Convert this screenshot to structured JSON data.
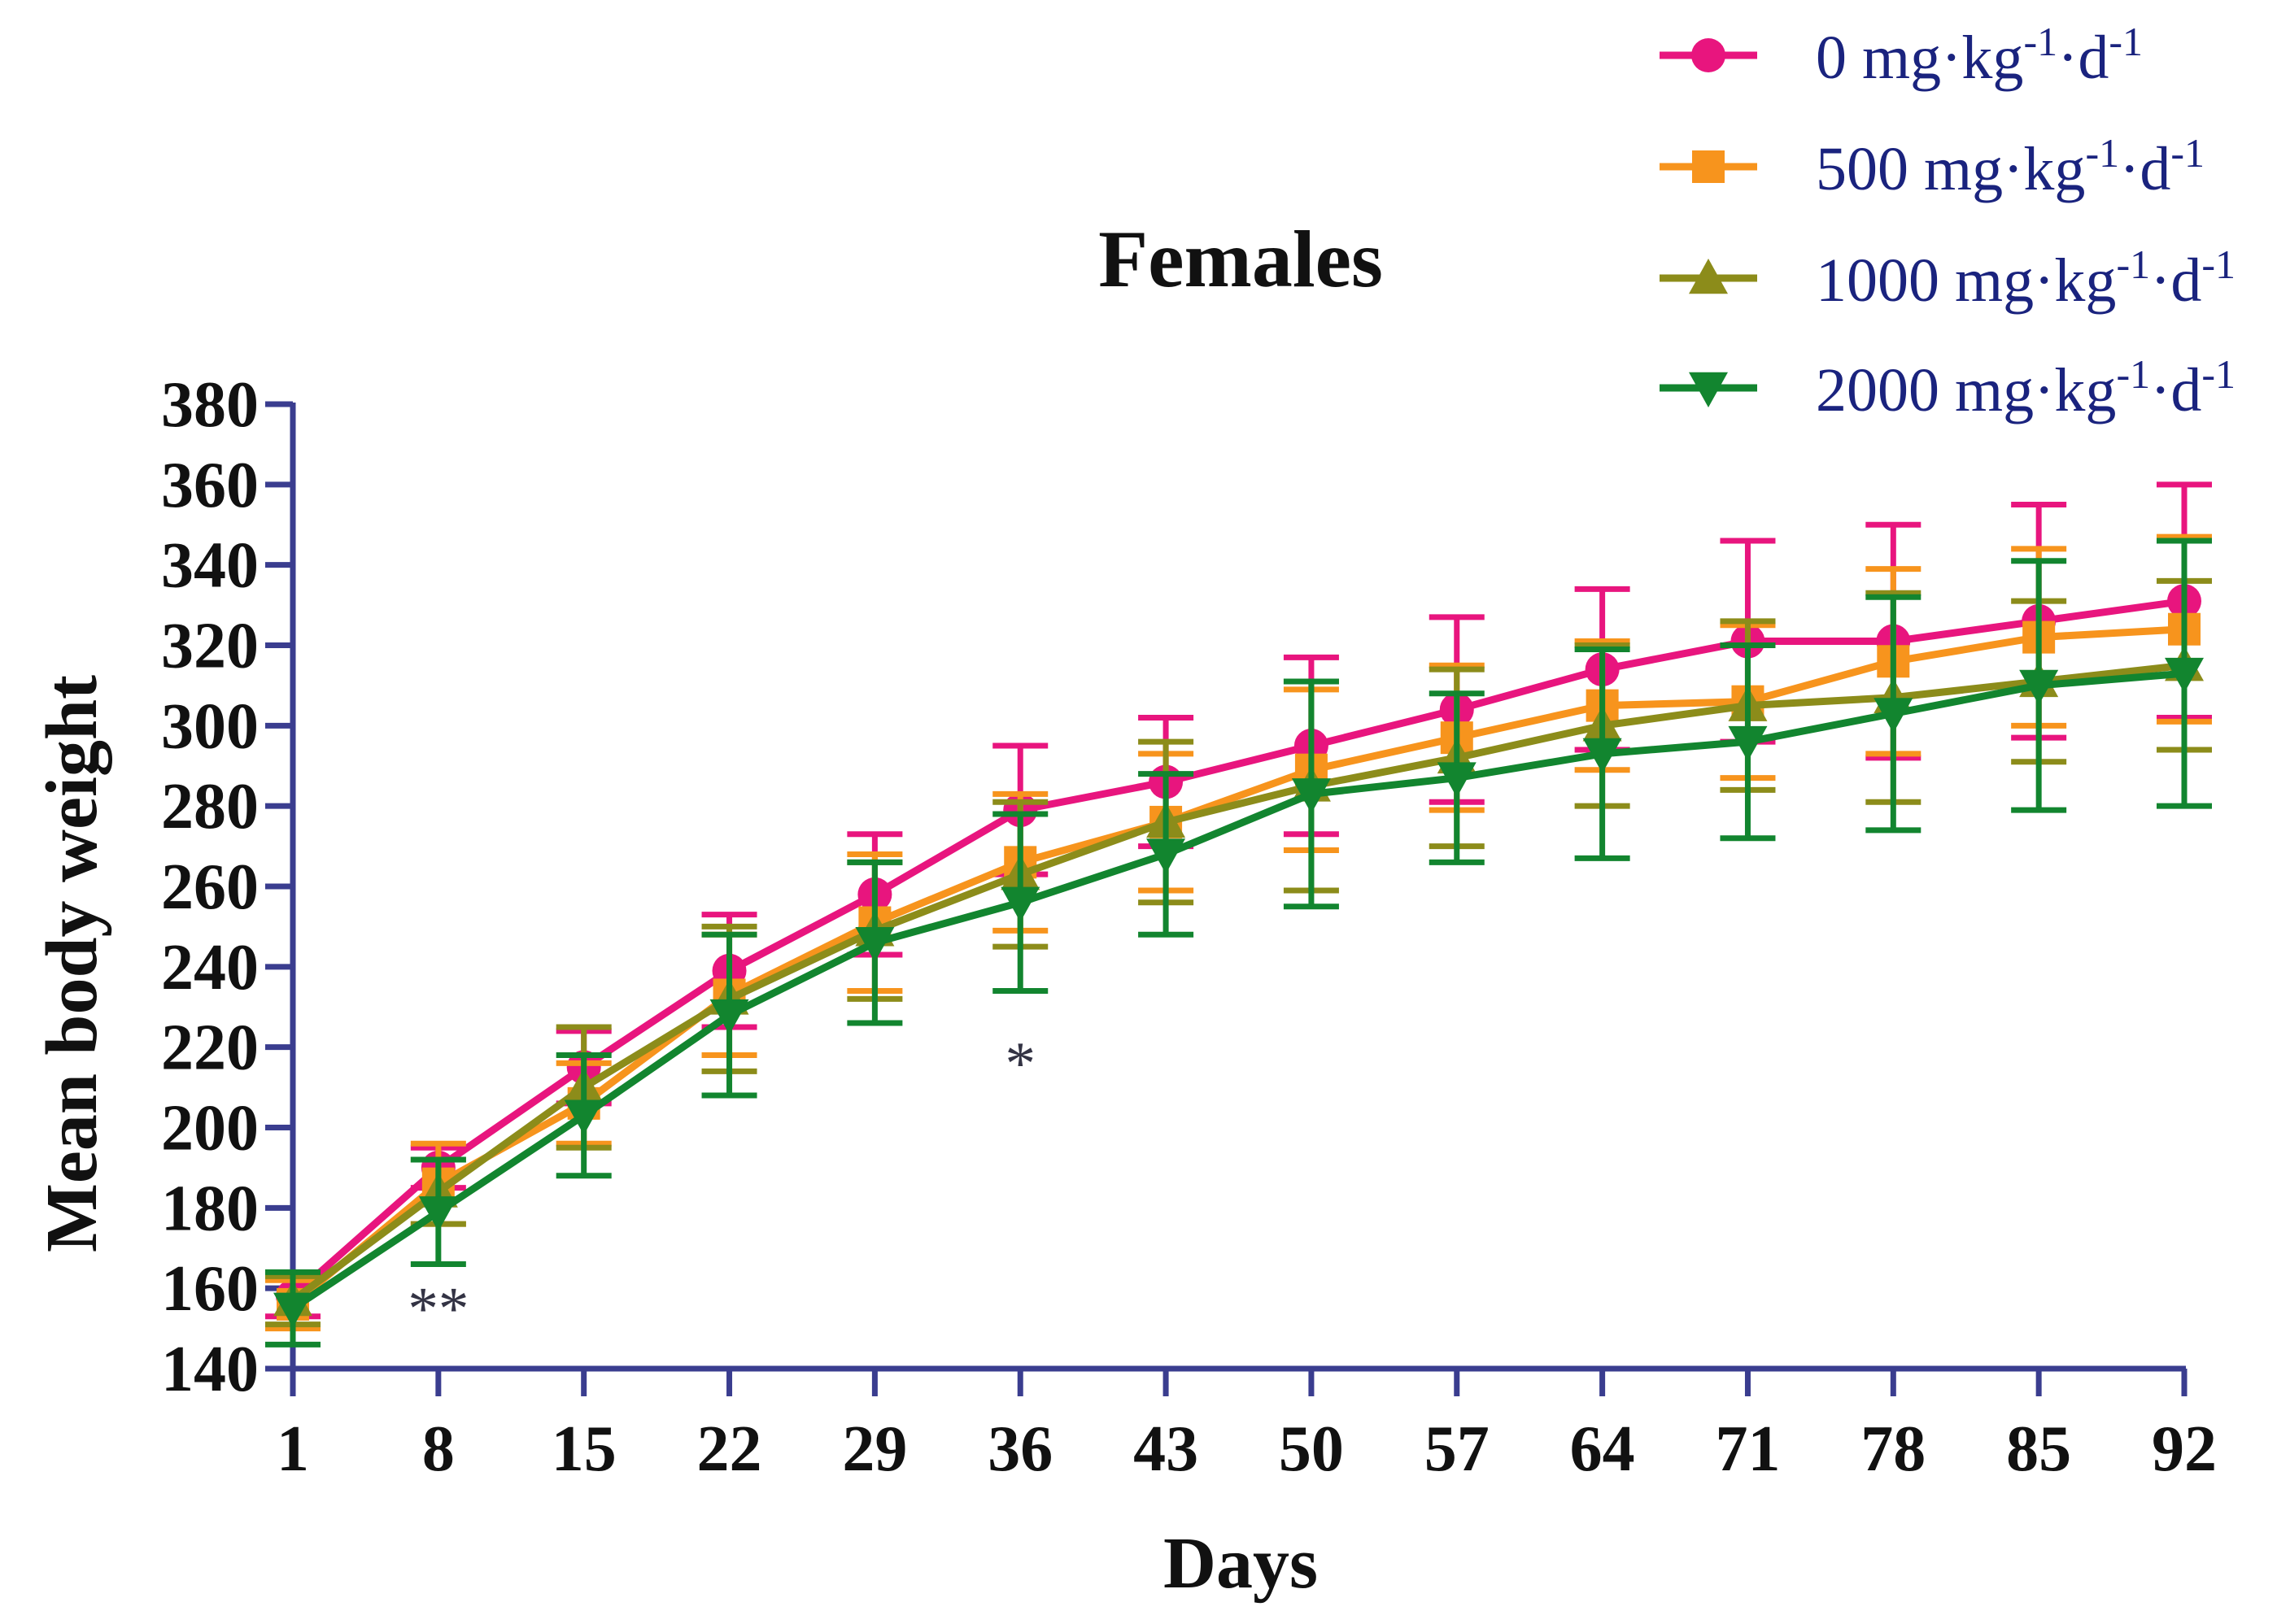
{
  "chart_data": {
    "type": "line",
    "title": "Females",
    "xlabel": "Days",
    "ylabel": "Mean body weight",
    "x": [
      1,
      8,
      15,
      22,
      29,
      36,
      43,
      50,
      57,
      64,
      71,
      78,
      85,
      92
    ],
    "x_tick_labels": [
      "1",
      "8",
      "15",
      "22",
      "29",
      "36",
      "43",
      "50",
      "57",
      "64",
      "71",
      "78",
      "85",
      "92"
    ],
    "ylim": [
      140,
      380
    ],
    "y_ticks": [
      140,
      160,
      180,
      200,
      220,
      240,
      260,
      280,
      300,
      320,
      340,
      360,
      380
    ],
    "y_tick_labels": [
      "140",
      "160",
      "180",
      "200",
      "220",
      "240",
      "260",
      "280",
      "300",
      "320",
      "340",
      "360",
      "380"
    ],
    "grid": false,
    "legend_position": "top-right",
    "error_bars": true,
    "series": [
      {
        "name": "0 mg·kg-1·d-1",
        "name_base": "0 mg·kg",
        "name_sup1": "-1",
        "name_mid": "·d",
        "name_sup2": "-1",
        "color": "#e8157e",
        "marker": "circle",
        "values": [
          158,
          190,
          215,
          239,
          258,
          279,
          286,
          295,
          304,
          314,
          321,
          321,
          326,
          331
        ],
        "errors": [
          5,
          5,
          9,
          14,
          15,
          16,
          16,
          22,
          23,
          20,
          25,
          29,
          29,
          29
        ]
      },
      {
        "name": "500 mg·kg-1·d-1",
        "name_base": "500 mg·kg",
        "name_sup1": "-1",
        "name_mid": "·d",
        "name_sup2": "-1",
        "color": "#f7941d",
        "marker": "square",
        "values": [
          156,
          186,
          206,
          233,
          251,
          266,
          276,
          289,
          297,
          305,
          306,
          316,
          322,
          324
        ],
        "errors": [
          6,
          10,
          10,
          15,
          17,
          17,
          17,
          20,
          18,
          16,
          19,
          23,
          22,
          23
        ]
      },
      {
        "name": "1000 mg·kg-1·d-1",
        "name_base": "1000 mg·kg",
        "name_sup1": "-1",
        "name_mid": "·d",
        "name_sup2": "-1",
        "color": "#8c8c1a",
        "marker": "triangle-up",
        "values": [
          157,
          184,
          210,
          232,
          249,
          263,
          276,
          285,
          292,
          300,
          305,
          307,
          311,
          315
        ],
        "errors": [
          6,
          8,
          15,
          18,
          17,
          18,
          20,
          26,
          22,
          20,
          21,
          26,
          20,
          21
        ]
      },
      {
        "name": "2000 mg·kg-1·d-1",
        "name_base": "2000 mg·kg",
        "name_sup1": "-1",
        "name_mid": "·d",
        "name_sup2": "-1",
        "color": "#12852f",
        "marker": "triangle-down",
        "values": [
          155,
          179,
          203,
          228,
          246,
          256,
          268,
          283,
          287,
          293,
          296,
          303,
          310,
          313
        ],
        "errors": [
          9,
          13,
          15,
          20,
          20,
          22,
          20,
          28,
          21,
          26,
          24,
          29,
          31,
          33
        ]
      }
    ],
    "annotations": [
      {
        "text": "**",
        "x": 8,
        "y": 158
      },
      {
        "text": "*",
        "x": 36,
        "y": 219
      }
    ]
  }
}
